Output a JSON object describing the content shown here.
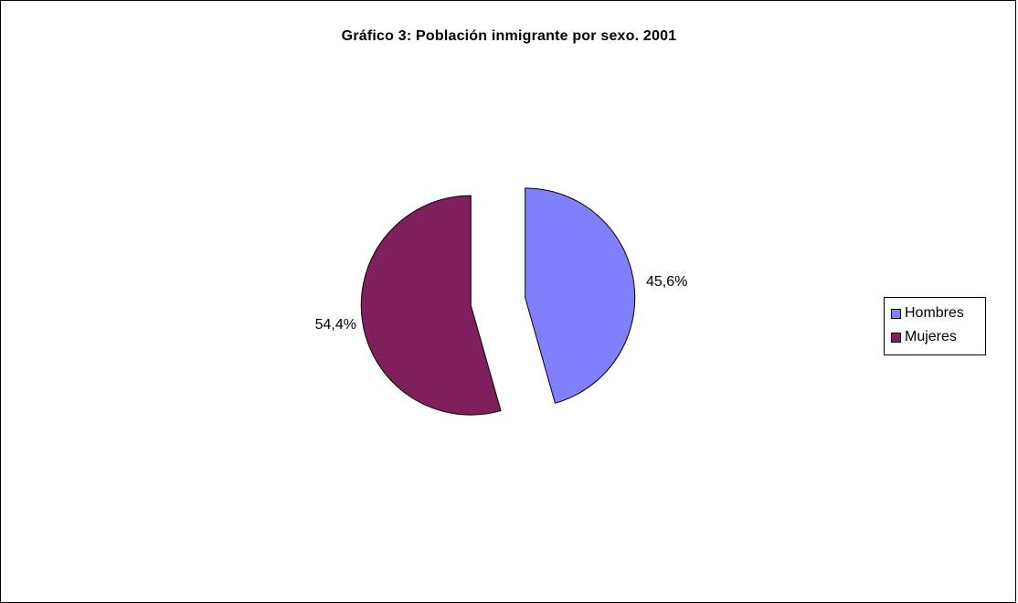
{
  "chart_data": {
    "type": "pie",
    "title": "Gráfico 3: Población inmigrante por sexo. 2001",
    "legend_position": "right",
    "slices": [
      {
        "name": "Hombres",
        "value": 45.6,
        "label": "45,6%",
        "color": "#8080ff"
      },
      {
        "name": "Mujeres",
        "value": 54.4,
        "label": "54,4%",
        "color": "#7f1f5b"
      }
    ]
  }
}
